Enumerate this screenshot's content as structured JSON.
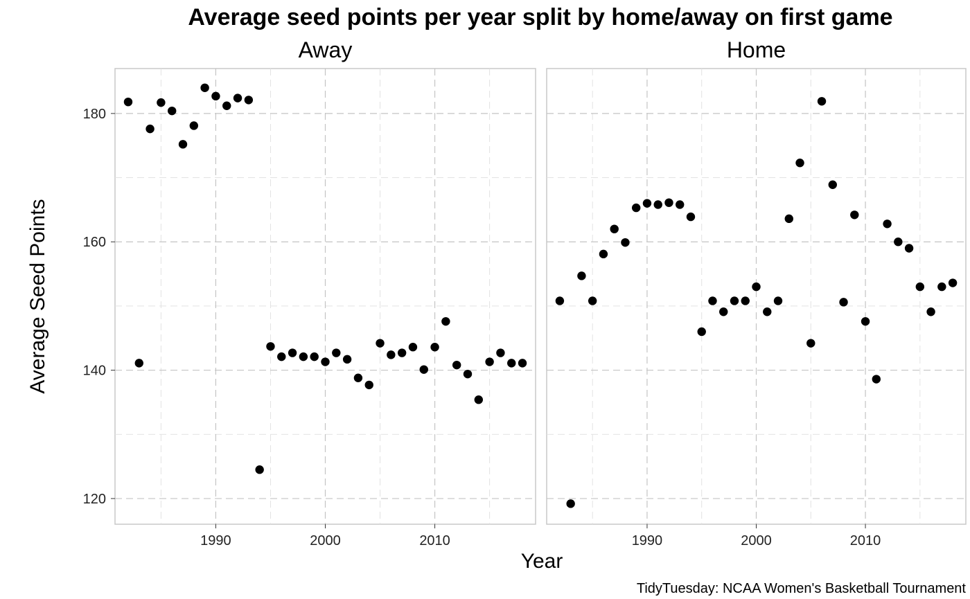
{
  "chart_data": {
    "type": "scatter",
    "title": "Average seed points per year split by home/away on first game",
    "xlabel": "Year",
    "ylabel": "Average Seed Points",
    "caption": "TidyTuesday: NCAA Women's Basketball Tournament",
    "xlim": [
      1980.8,
      2019.2
    ],
    "ylim": [
      116,
      187
    ],
    "x_ticks": [
      1990,
      2000,
      2010
    ],
    "y_ticks": [
      120,
      140,
      160,
      180
    ],
    "grid": true,
    "point_color": "#000000",
    "facets": [
      {
        "name": "Away",
        "points": [
          {
            "x": 1982,
            "y": 181.8
          },
          {
            "x": 1983,
            "y": 141.1
          },
          {
            "x": 1984,
            "y": 177.6
          },
          {
            "x": 1985,
            "y": 181.7
          },
          {
            "x": 1986,
            "y": 180.4
          },
          {
            "x": 1987,
            "y": 175.2
          },
          {
            "x": 1988,
            "y": 178.1
          },
          {
            "x": 1989,
            "y": 184.0
          },
          {
            "x": 1990,
            "y": 182.7
          },
          {
            "x": 1991,
            "y": 181.2
          },
          {
            "x": 1992,
            "y": 182.4
          },
          {
            "x": 1993,
            "y": 182.1
          },
          {
            "x": 1994,
            "y": 124.5
          },
          {
            "x": 1995,
            "y": 143.7
          },
          {
            "x": 1996,
            "y": 142.1
          },
          {
            "x": 1997,
            "y": 142.7
          },
          {
            "x": 1998,
            "y": 142.1
          },
          {
            "x": 1999,
            "y": 142.1
          },
          {
            "x": 2000,
            "y": 141.3
          },
          {
            "x": 2001,
            "y": 142.7
          },
          {
            "x": 2002,
            "y": 141.7
          },
          {
            "x": 2003,
            "y": 138.8
          },
          {
            "x": 2004,
            "y": 137.7
          },
          {
            "x": 2005,
            "y": 144.2
          },
          {
            "x": 2006,
            "y": 142.4
          },
          {
            "x": 2007,
            "y": 142.7
          },
          {
            "x": 2008,
            "y": 143.6
          },
          {
            "x": 2009,
            "y": 140.1
          },
          {
            "x": 2010,
            "y": 143.6
          },
          {
            "x": 2011,
            "y": 147.6
          },
          {
            "x": 2012,
            "y": 140.8
          },
          {
            "x": 2013,
            "y": 139.4
          },
          {
            "x": 2014,
            "y": 135.4
          },
          {
            "x": 2015,
            "y": 141.3
          },
          {
            "x": 2016,
            "y": 142.7
          },
          {
            "x": 2017,
            "y": 141.1
          },
          {
            "x": 2018,
            "y": 141.1
          }
        ]
      },
      {
        "name": "Home",
        "points": [
          {
            "x": 1982,
            "y": 150.8
          },
          {
            "x": 1983,
            "y": 119.2
          },
          {
            "x": 1984,
            "y": 154.7
          },
          {
            "x": 1985,
            "y": 150.8
          },
          {
            "x": 1986,
            "y": 158.1
          },
          {
            "x": 1987,
            "y": 162.0
          },
          {
            "x": 1988,
            "y": 159.9
          },
          {
            "x": 1989,
            "y": 165.3
          },
          {
            "x": 1990,
            "y": 166.0
          },
          {
            "x": 1991,
            "y": 165.8
          },
          {
            "x": 1992,
            "y": 166.1
          },
          {
            "x": 1993,
            "y": 165.8
          },
          {
            "x": 1994,
            "y": 163.9
          },
          {
            "x": 1995,
            "y": 146.0
          },
          {
            "x": 1996,
            "y": 150.8
          },
          {
            "x": 1997,
            "y": 149.1
          },
          {
            "x": 1998,
            "y": 150.8
          },
          {
            "x": 1999,
            "y": 150.8
          },
          {
            "x": 2000,
            "y": 153.0
          },
          {
            "x": 2001,
            "y": 149.1
          },
          {
            "x": 2002,
            "y": 150.8
          },
          {
            "x": 2003,
            "y": 163.6
          },
          {
            "x": 2004,
            "y": 172.3
          },
          {
            "x": 2005,
            "y": 144.2
          },
          {
            "x": 2006,
            "y": 181.9
          },
          {
            "x": 2007,
            "y": 168.9
          },
          {
            "x": 2008,
            "y": 150.6
          },
          {
            "x": 2009,
            "y": 164.2
          },
          {
            "x": 2010,
            "y": 147.6
          },
          {
            "x": 2011,
            "y": 138.6
          },
          {
            "x": 2012,
            "y": 162.8
          },
          {
            "x": 2013,
            "y": 160.0
          },
          {
            "x": 2014,
            "y": 159.0
          },
          {
            "x": 2015,
            "y": 153.0
          },
          {
            "x": 2016,
            "y": 149.1
          },
          {
            "x": 2017,
            "y": 153.0
          },
          {
            "x": 2018,
            "y": 153.6
          }
        ]
      }
    ]
  }
}
